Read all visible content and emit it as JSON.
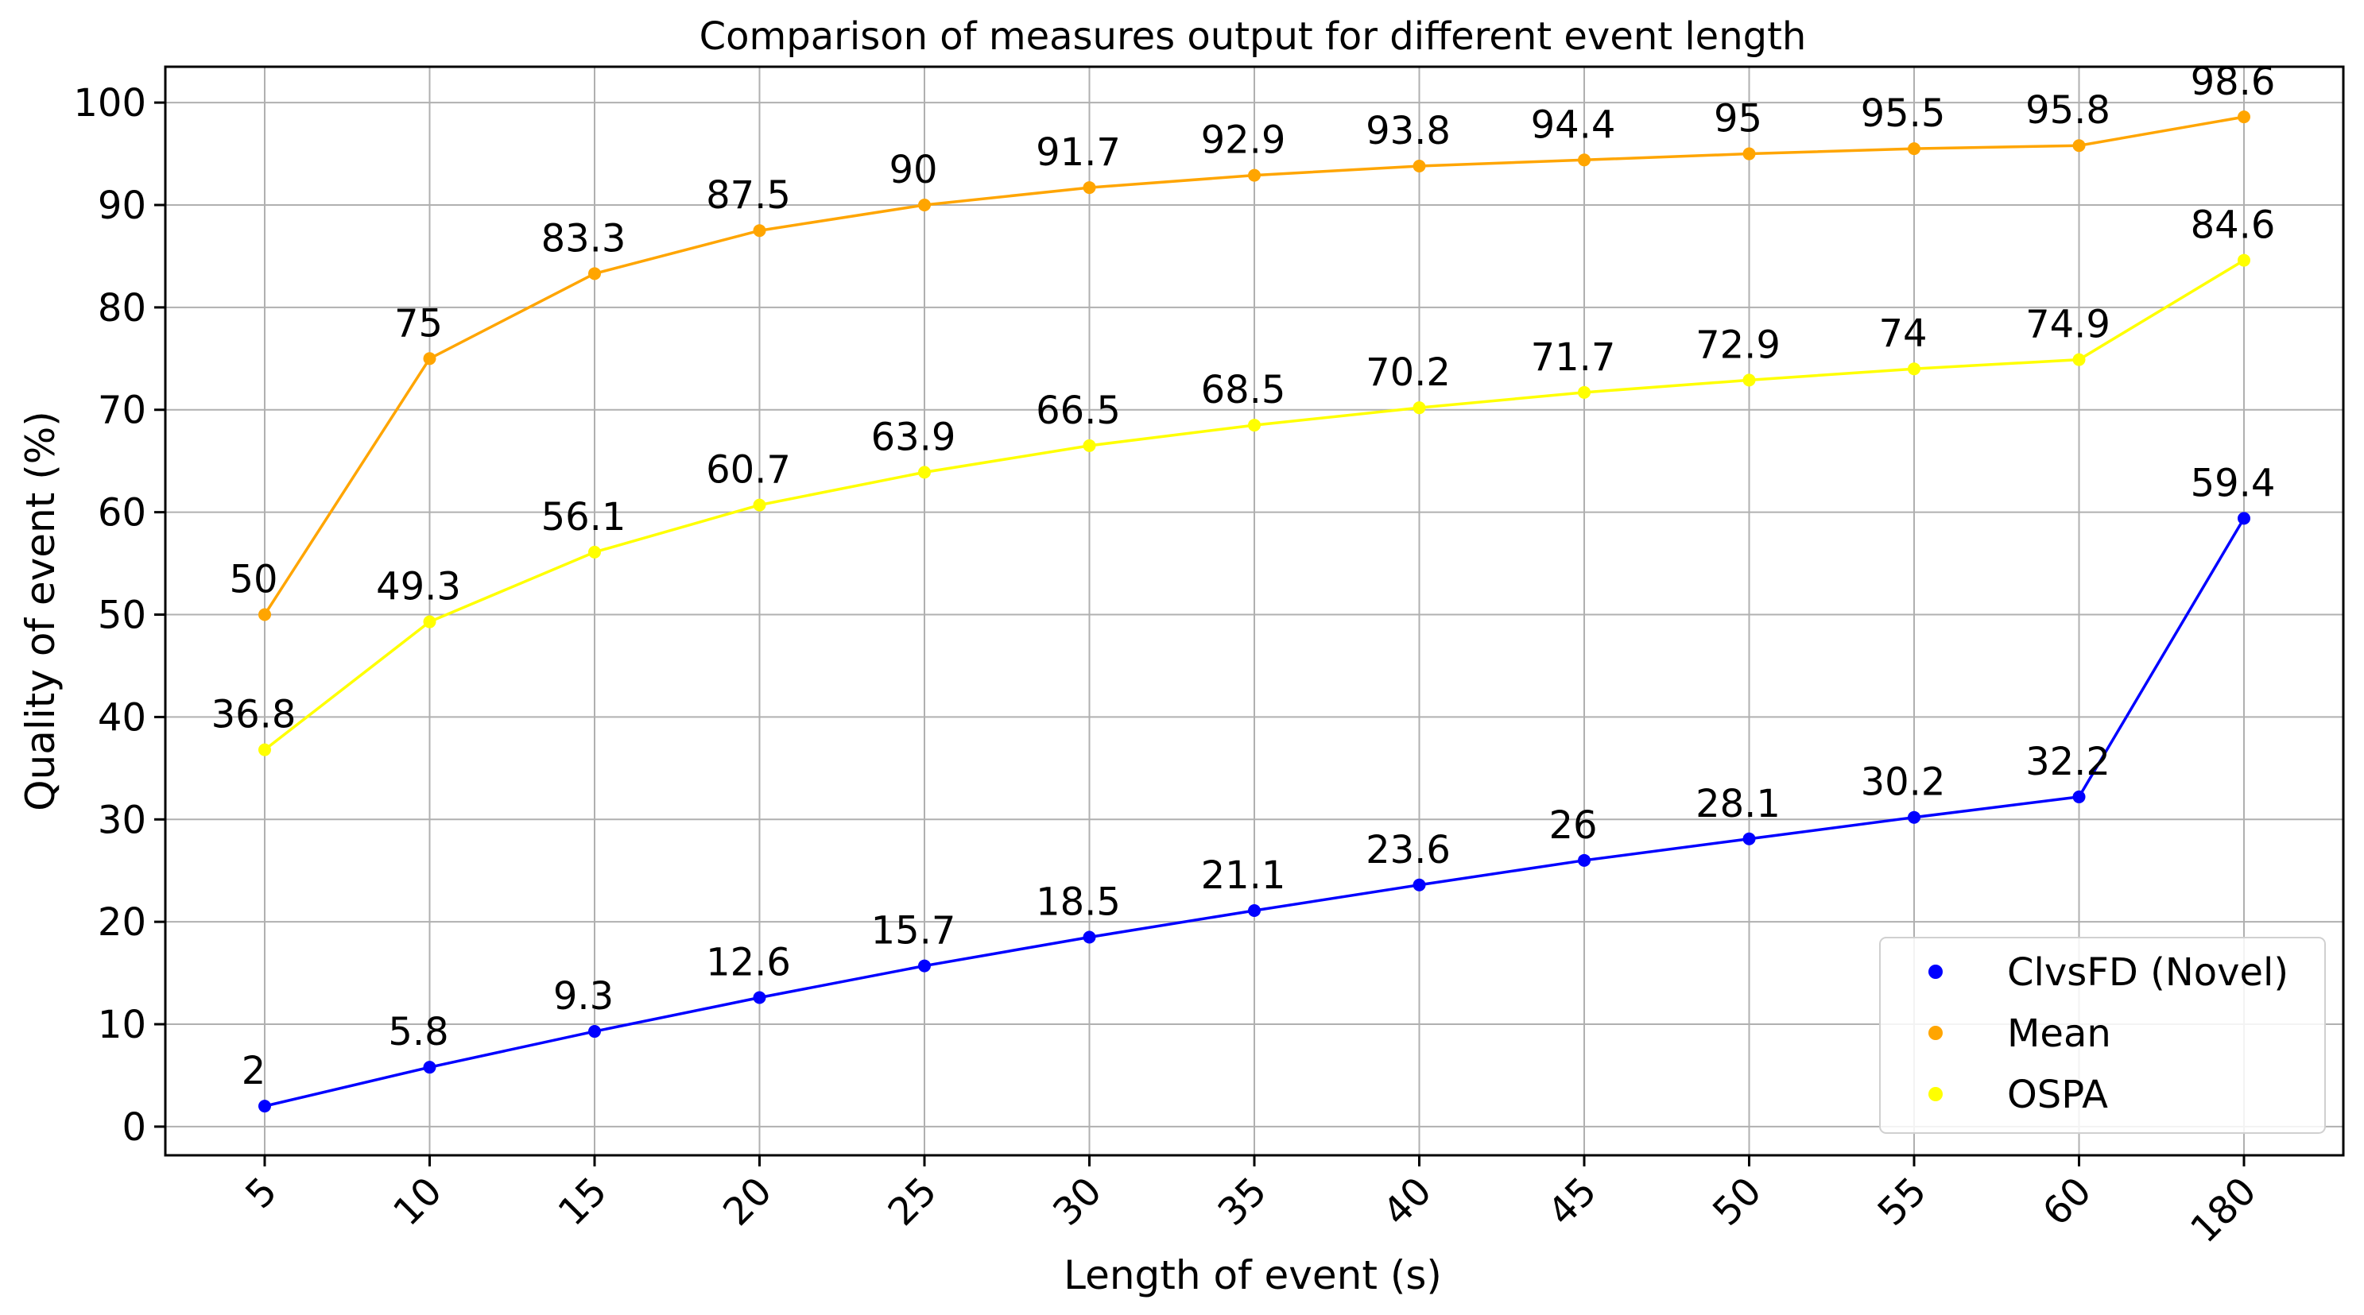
{
  "chart_data": {
    "type": "line",
    "title": "Comparison of measures output for different event length",
    "xlabel": "Length of event (s)",
    "ylabel": "Quality of event (%)",
    "categories": [
      "5",
      "10",
      "15",
      "20",
      "25",
      "30",
      "35",
      "40",
      "45",
      "50",
      "55",
      "60",
      "180"
    ],
    "ylim": [
      -2.8,
      103.5
    ],
    "yticks": [
      0,
      10,
      20,
      30,
      40,
      50,
      60,
      70,
      80,
      90,
      100
    ],
    "grid": true,
    "legend_position": "bottom-right",
    "series": [
      {
        "name": "ClvsFD (Novel)",
        "color": "#0000ff",
        "values": [
          2,
          5.8,
          9.3,
          12.6,
          15.7,
          18.5,
          21.1,
          23.6,
          26,
          28.1,
          30.2,
          32.2,
          59.4
        ]
      },
      {
        "name": "Mean",
        "color": "#ffa500",
        "values": [
          50,
          75,
          83.3,
          87.5,
          90,
          91.7,
          92.9,
          93.8,
          94.4,
          95,
          95.5,
          95.8,
          98.6
        ]
      },
      {
        "name": "OSPA",
        "color": "#ffff00",
        "values": [
          36.8,
          49.3,
          56.1,
          60.7,
          63.9,
          66.5,
          68.5,
          70.2,
          71.7,
          72.9,
          74,
          74.9,
          84.6
        ]
      }
    ]
  }
}
